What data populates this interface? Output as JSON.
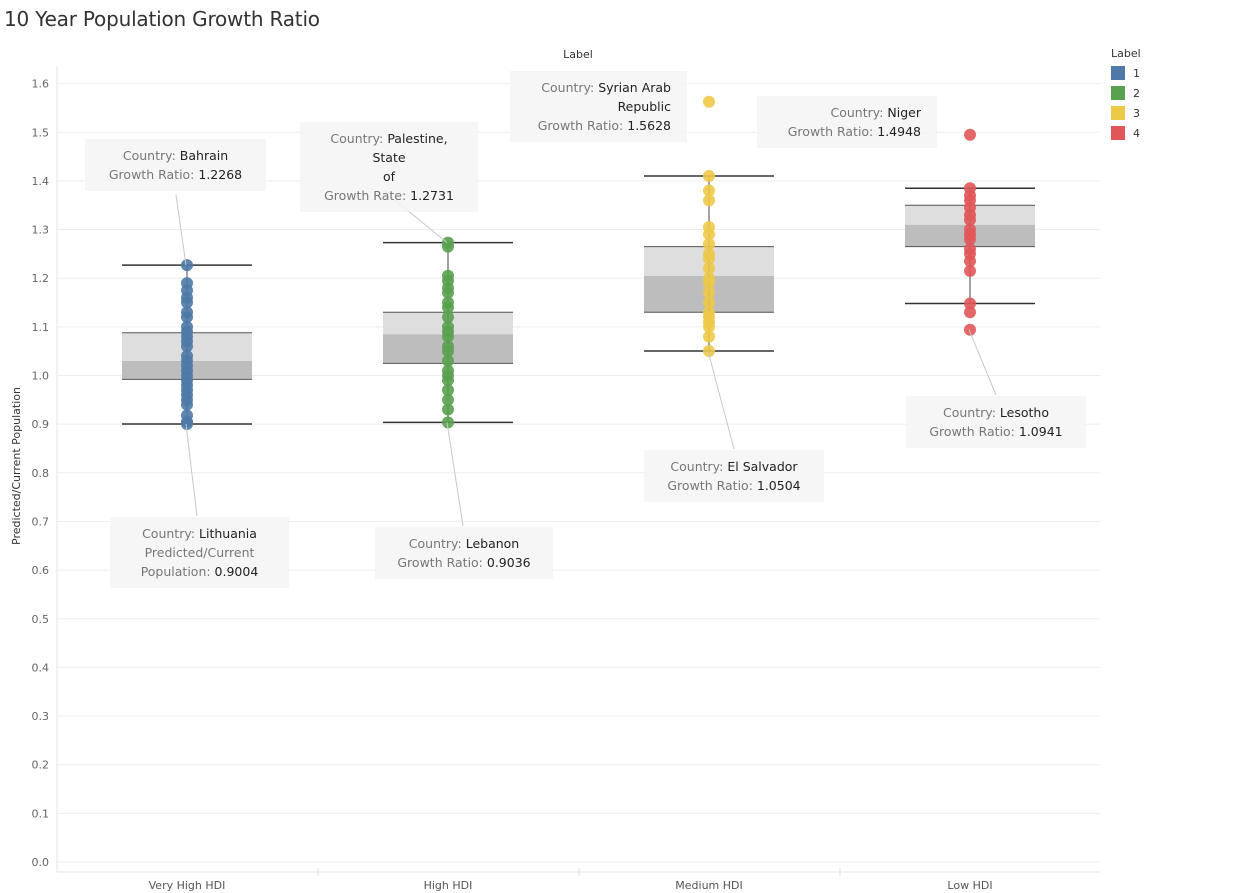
{
  "chart_data": {
    "type": "box",
    "title": "10 Year Population Growth Ratio",
    "column_header": "Label",
    "ylabel": "Predicted/Current Population",
    "ylim": [
      0,
      1.65
    ],
    "yticks": [
      "0.0",
      "0.1",
      "0.2",
      "0.3",
      "0.4",
      "0.5",
      "0.6",
      "0.7",
      "0.8",
      "0.9",
      "1.0",
      "1.1",
      "1.2",
      "1.3",
      "1.4",
      "1.5",
      "1.6"
    ],
    "categories": [
      "Very High HDI",
      "High HDI",
      "Medium HDI",
      "Low HDI"
    ],
    "legend": {
      "title": "Label",
      "items": [
        {
          "label": "1",
          "color": "#4e79a7"
        },
        {
          "label": "2",
          "color": "#59a14f"
        },
        {
          "label": "3",
          "color": "#edc948"
        },
        {
          "label": "4",
          "color": "#e15759"
        }
      ]
    },
    "boxes": [
      {
        "category": "Very High HDI",
        "min": 0.9004,
        "q1": 0.992,
        "median": 1.03,
        "q3": 1.088,
        "max": 1.2268,
        "color": "#4e79a7",
        "points": [
          0.9004,
          0.905,
          0.918,
          0.94,
          0.95,
          0.96,
          0.97,
          0.98,
          0.99,
          1.0,
          1.01,
          1.02,
          1.03,
          1.04,
          1.06,
          1.07,
          1.08,
          1.09,
          1.1,
          1.12,
          1.13,
          1.15,
          1.16,
          1.175,
          1.19,
          1.2268
        ]
      },
      {
        "category": "High HDI",
        "min": 0.9036,
        "q1": 1.025,
        "median": 1.085,
        "q3": 1.13,
        "max": 1.2731,
        "color": "#59a14f",
        "points": [
          0.9036,
          0.93,
          0.95,
          0.97,
          0.99,
          1.0,
          1.01,
          1.03,
          1.05,
          1.06,
          1.08,
          1.09,
          1.1,
          1.12,
          1.14,
          1.15,
          1.17,
          1.18,
          1.195,
          1.205,
          1.265,
          1.2731
        ]
      },
      {
        "category": "Medium HDI",
        "min": 1.0504,
        "q1": 1.13,
        "median": 1.205,
        "q3": 1.265,
        "max": 1.41,
        "color": "#edc948",
        "points": [
          1.0504,
          1.08,
          1.1,
          1.11,
          1.12,
          1.13,
          1.15,
          1.17,
          1.19,
          1.2,
          1.22,
          1.24,
          1.25,
          1.27,
          1.29,
          1.305,
          1.36,
          1.38,
          1.41,
          1.5628
        ]
      },
      {
        "category": "Low HDI",
        "min": 1.148,
        "q1": 1.265,
        "median": 1.31,
        "q3": 1.35,
        "max": 1.385,
        "color": "#e15759",
        "points": [
          1.0941,
          1.13,
          1.148,
          1.215,
          1.235,
          1.25,
          1.26,
          1.28,
          1.29,
          1.3,
          1.32,
          1.33,
          1.345,
          1.36,
          1.37,
          1.385,
          1.4948
        ]
      }
    ]
  },
  "tooltips": [
    {
      "id": "bahrain",
      "lines": [
        [
          "Country: ",
          "Bahrain"
        ],
        [
          "Growth Ratio: ",
          "1.2268"
        ]
      ]
    },
    {
      "id": "palestine",
      "lines": [
        [
          "Country: ",
          "Palestine, State"
        ],
        [
          "",
          "of"
        ],
        [
          "Growth Rate: ",
          "1.2731"
        ]
      ]
    },
    {
      "id": "syria",
      "lines": [
        [
          "Country: ",
          "Syrian Arab"
        ],
        [
          "",
          "Republic"
        ],
        [
          "Growth Ratio: ",
          "1.5628"
        ]
      ]
    },
    {
      "id": "niger",
      "lines": [
        [
          "Country: ",
          "Niger"
        ],
        [
          "Growth Ratio: ",
          "1.4948"
        ]
      ]
    },
    {
      "id": "lithuania",
      "lines": [
        [
          "Country: ",
          "Lithuania"
        ],
        [
          "Predicted/Current",
          ""
        ],
        [
          "Population: ",
          "0.9004"
        ]
      ]
    },
    {
      "id": "lebanon",
      "lines": [
        [
          "Country: ",
          "Lebanon"
        ],
        [
          "Growth Ratio: ",
          "0.9036"
        ]
      ]
    },
    {
      "id": "elsalvador",
      "lines": [
        [
          "Country: ",
          "El Salvador"
        ],
        [
          "Growth Ratio: ",
          "1.0504"
        ]
      ]
    },
    {
      "id": "lesotho",
      "lines": [
        [
          "Country: ",
          "Lesotho"
        ],
        [
          "Growth Ratio: ",
          "1.0941"
        ]
      ]
    }
  ]
}
